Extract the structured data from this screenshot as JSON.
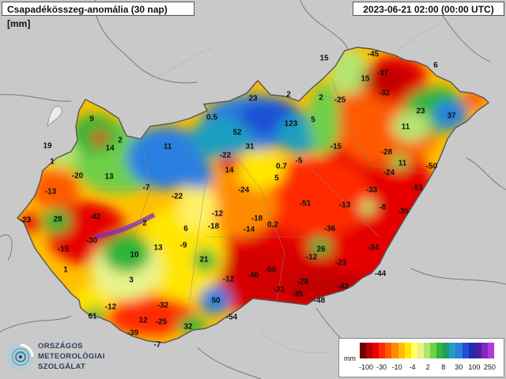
{
  "title": "Csapadékösszeg-anomália (30 nap) [mm]",
  "timestamp": "2023-06-21 02:00 (00:00 UTC)",
  "colors": {
    "background_land": "#c9c9c9",
    "water": "#e8ecf2",
    "border": "#7a7a7a",
    "country_outline": "#555555",
    "accent": "#2b3f5c"
  },
  "logo": {
    "line1": "ORSZÁGOS",
    "line2": "METEOROLÓGIAI",
    "line3": "SZOLGÁLAT",
    "icon": "spiral-emblem-icon"
  },
  "legend": {
    "unit": "mm",
    "ticks": [
      "-100",
      "-30",
      "-10",
      "-4",
      "2",
      "8",
      "30",
      "100",
      "250"
    ],
    "colors": [
      "#6e0000",
      "#b30000",
      "#e60000",
      "#ff2a00",
      "#ff5a00",
      "#ff8c00",
      "#ffbf00",
      "#ffe600",
      "#ffff66",
      "#e8f38c",
      "#b6e36f",
      "#6fcf4a",
      "#2fb43a",
      "#1f9a6a",
      "#1f9fc0",
      "#2a7fe0",
      "#1f4fd6",
      "#1a2fb0",
      "#4b1fa0",
      "#7b2cc0",
      "#b23ad6"
    ]
  },
  "chart_data": {
    "type": "heatmap",
    "title": "Csapadékösszeg-anomália (30 nap) [mm]",
    "unit": "mm",
    "legend_ticks": [
      -100,
      -30,
      -10,
      -4,
      2,
      8,
      30,
      100,
      250
    ],
    "station_values": [
      {
        "id": "s1",
        "value": "-45"
      },
      {
        "id": "s2",
        "value": "15"
      },
      {
        "id": "s3",
        "value": "6"
      },
      {
        "id": "s4",
        "value": "15"
      },
      {
        "id": "s5",
        "value": "-37"
      },
      {
        "id": "s6",
        "value": "-32"
      },
      {
        "id": "s7",
        "value": "23"
      },
      {
        "id": "s8",
        "value": "2"
      },
      {
        "id": "s9",
        "value": "2"
      },
      {
        "id": "s10",
        "value": "-25"
      },
      {
        "id": "s11",
        "value": "23"
      },
      {
        "id": "s12",
        "value": "37"
      },
      {
        "id": "s13",
        "value": "9"
      },
      {
        "id": "s14",
        "value": "0.5"
      },
      {
        "id": "s15",
        "value": "52"
      },
      {
        "id": "s16",
        "value": "123"
      },
      {
        "id": "s17",
        "value": "5"
      },
      {
        "id": "s18",
        "value": "11"
      },
      {
        "id": "s19",
        "value": "2"
      },
      {
        "id": "s20",
        "value": "14"
      },
      {
        "id": "s21",
        "value": "11"
      },
      {
        "id": "s22",
        "value": "31"
      },
      {
        "id": "s23",
        "value": "-15"
      },
      {
        "id": "s24",
        "value": "-28"
      },
      {
        "id": "s25",
        "value": "19"
      },
      {
        "id": "s26",
        "value": "1"
      },
      {
        "id": "s27",
        "value": "-22"
      },
      {
        "id": "s28",
        "value": "14"
      },
      {
        "id": "s29",
        "value": "0.7"
      },
      {
        "id": "s30",
        "value": "-5"
      },
      {
        "id": "s31",
        "value": "11"
      },
      {
        "id": "s32",
        "value": "-50"
      },
      {
        "id": "s33",
        "value": "-24"
      },
      {
        "id": "s34",
        "value": "-20"
      },
      {
        "id": "s35",
        "value": "13"
      },
      {
        "id": "s36",
        "value": "-13"
      },
      {
        "id": "s37",
        "value": "-7"
      },
      {
        "id": "s38",
        "value": "5"
      },
      {
        "id": "s39",
        "value": "-24"
      },
      {
        "id": "s40",
        "value": "-33"
      },
      {
        "id": "s41",
        "value": "-51"
      },
      {
        "id": "s42",
        "value": "-22"
      },
      {
        "id": "s43",
        "value": "-51"
      },
      {
        "id": "s44",
        "value": "-13"
      },
      {
        "id": "s45",
        "value": "-8"
      },
      {
        "id": "s46",
        "value": "-35"
      },
      {
        "id": "s47",
        "value": "-23"
      },
      {
        "id": "s48",
        "value": "28"
      },
      {
        "id": "s49",
        "value": "-42"
      },
      {
        "id": "s50",
        "value": "-12"
      },
      {
        "id": "s51",
        "value": "-18"
      },
      {
        "id": "s52",
        "value": "0.2"
      },
      {
        "id": "s53",
        "value": "2"
      },
      {
        "id": "s54",
        "value": "6"
      },
      {
        "id": "s55",
        "value": "-18"
      },
      {
        "id": "s56",
        "value": "-14"
      },
      {
        "id": "s57",
        "value": "-36"
      },
      {
        "id": "s58",
        "value": "-30"
      },
      {
        "id": "s59",
        "value": "-15"
      },
      {
        "id": "s60",
        "value": "10"
      },
      {
        "id": "s61",
        "value": "13"
      },
      {
        "id": "s62",
        "value": "-9"
      },
      {
        "id": "s63",
        "value": "26"
      },
      {
        "id": "s64",
        "value": "-24"
      },
      {
        "id": "s65",
        "value": "-12"
      },
      {
        "id": "s66",
        "value": "21"
      },
      {
        "id": "s67",
        "value": "-23"
      },
      {
        "id": "s68",
        "value": "1"
      },
      {
        "id": "s69",
        "value": "-50"
      },
      {
        "id": "s70",
        "value": "-40"
      },
      {
        "id": "s71",
        "value": "-12"
      },
      {
        "id": "s72",
        "value": "-44"
      },
      {
        "id": "s73",
        "value": "3"
      },
      {
        "id": "s74",
        "value": "-28"
      },
      {
        "id": "s75",
        "value": "-21"
      },
      {
        "id": "s76",
        "value": "-35"
      },
      {
        "id": "s77",
        "value": "-42"
      },
      {
        "id": "s78",
        "value": "-32"
      },
      {
        "id": "s79",
        "value": "50"
      },
      {
        "id": "s80",
        "value": "-48"
      },
      {
        "id": "s81",
        "value": "-12"
      },
      {
        "id": "s82",
        "value": "61"
      },
      {
        "id": "s83",
        "value": "12"
      },
      {
        "id": "s84",
        "value": "-25"
      },
      {
        "id": "s85",
        "value": "-54"
      },
      {
        "id": "s86",
        "value": "32"
      },
      {
        "id": "s87",
        "value": "-39"
      },
      {
        "id": "s88",
        "value": "-7"
      }
    ]
  }
}
